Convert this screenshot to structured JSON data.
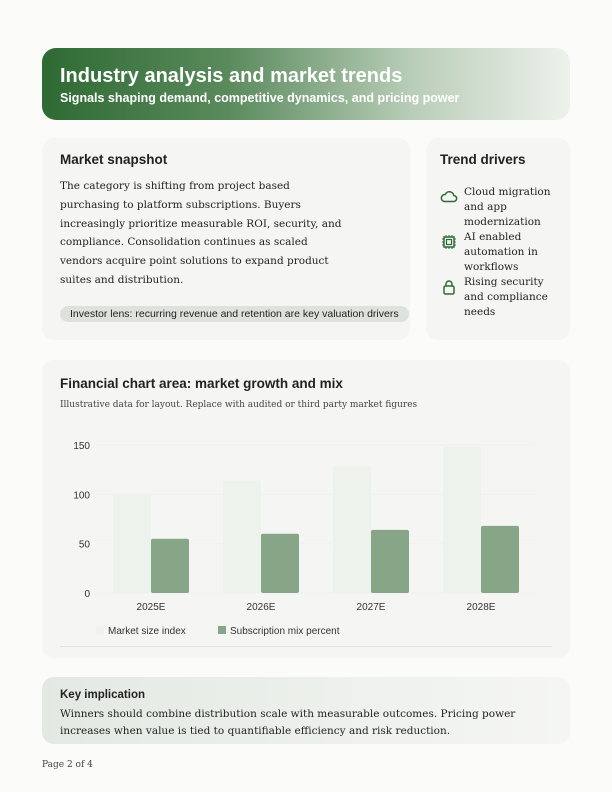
{
  "header": {
    "title": "Industry analysis and market trends",
    "subtitle": "Signals shaping demand, competitive dynamics, and pricing power"
  },
  "snapshot": {
    "title": "Market snapshot",
    "body": "The category is shifting from project based purchasing to platform subscriptions. Buyers increasingly prioritize measurable ROI, security, and compliance. Consolidation continues as scaled vendors acquire point solutions to expand product suites and distribution.",
    "lens": "Investor lens: recurring revenue and retention are key valuation drivers"
  },
  "trends": {
    "title": "Trend drivers",
    "items": [
      {
        "icon": "cloud-icon",
        "label": "Cloud migration and app modernization"
      },
      {
        "icon": "chip-icon",
        "label": "AI enabled automation in workflows"
      },
      {
        "icon": "lock-icon",
        "label": "Rising security and compliance needs"
      }
    ]
  },
  "chart": {
    "title": "Financial chart area: market growth and mix",
    "subtitle": "Illustrative data for layout. Replace with audited or third party market figures"
  },
  "chart_data": {
    "type": "bar",
    "categories": [
      "2025E",
      "2026E",
      "2027E",
      "2028E"
    ],
    "series": [
      {
        "name": "Market size index",
        "values": [
          100,
          114,
          129,
          148
        ],
        "color": "#edf2ec"
      },
      {
        "name": "Subscription mix percent",
        "values": [
          55,
          60,
          64,
          68
        ],
        "color": "#87a587"
      }
    ],
    "ylim": [
      0,
      150
    ],
    "yticks": [
      0,
      50,
      100,
      150
    ],
    "grid": true,
    "legend": "bottom-left"
  },
  "implication": {
    "title": "Key implication",
    "body": "Winners should combine distribution scale with measurable outcomes. Pricing power increases when value is tied to quantifiable efficiency and risk reduction."
  },
  "footer": {
    "page": "Page 2 of 4"
  }
}
